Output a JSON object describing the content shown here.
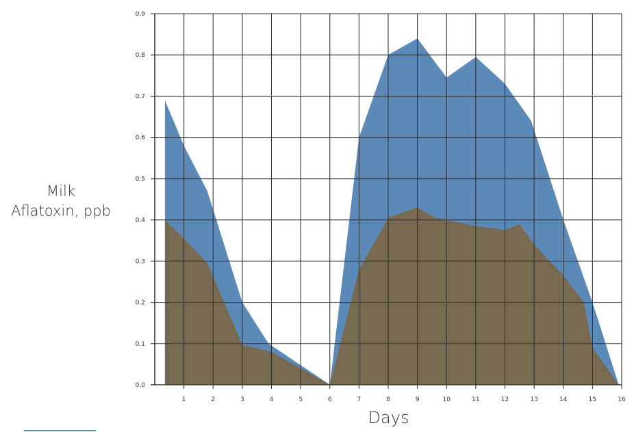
{
  "chart_data": {
    "type": "area",
    "title": "",
    "xlabel": "Days",
    "ylabel_lines": [
      "Milk",
      "Aflatoxin, ppb"
    ],
    "xlim": [
      0,
      16
    ],
    "ylim": [
      0,
      0.9
    ],
    "x_ticks": [
      "1",
      "2",
      "3",
      "4",
      "5",
      "6",
      "7",
      "8",
      "9",
      "10",
      "11",
      "12",
      "13",
      "14",
      "15",
      "16"
    ],
    "y_ticks": [
      "0.0",
      "0.1",
      "0.2",
      "0.3",
      "0.4",
      "0.5",
      "0.6",
      "0.7",
      "0.8",
      "0.9"
    ],
    "grid": true,
    "legend": "none",
    "series": [
      {
        "color": "#5b89b8",
        "points": [
          [
            0.35,
            0
          ],
          [
            0.35,
            0.69
          ],
          [
            1.0,
            0.58
          ],
          [
            1.8,
            0.47
          ],
          [
            3.0,
            0.2
          ],
          [
            3.9,
            0.1
          ],
          [
            6.0,
            0
          ],
          [
            7.0,
            0.6
          ],
          [
            8.0,
            0.8
          ],
          [
            9.0,
            0.84
          ],
          [
            10.0,
            0.745
          ],
          [
            11.0,
            0.795
          ],
          [
            12.0,
            0.73
          ],
          [
            12.9,
            0.64
          ],
          [
            14.0,
            0.4
          ],
          [
            15.0,
            0.2
          ],
          [
            15.9,
            0
          ]
        ]
      },
      {
        "color": "#786a51",
        "points": [
          [
            0.35,
            0
          ],
          [
            0.35,
            0.4
          ],
          [
            1.0,
            0.355
          ],
          [
            1.8,
            0.295
          ],
          [
            3.0,
            0.097
          ],
          [
            4.0,
            0.08
          ],
          [
            6.0,
            0
          ],
          [
            7.0,
            0.28
          ],
          [
            8.0,
            0.405
          ],
          [
            9.0,
            0.43
          ],
          [
            9.6,
            0.405
          ],
          [
            10.0,
            0.4
          ],
          [
            11.0,
            0.385
          ],
          [
            12.0,
            0.375
          ],
          [
            12.5,
            0.39
          ],
          [
            13.0,
            0.34
          ],
          [
            14.0,
            0.265
          ],
          [
            14.7,
            0.2
          ],
          [
            15.0,
            0.09
          ],
          [
            15.9,
            0
          ]
        ]
      }
    ],
    "gridline_color": "#333333",
    "decor_line_color": "#5b8fa0"
  }
}
